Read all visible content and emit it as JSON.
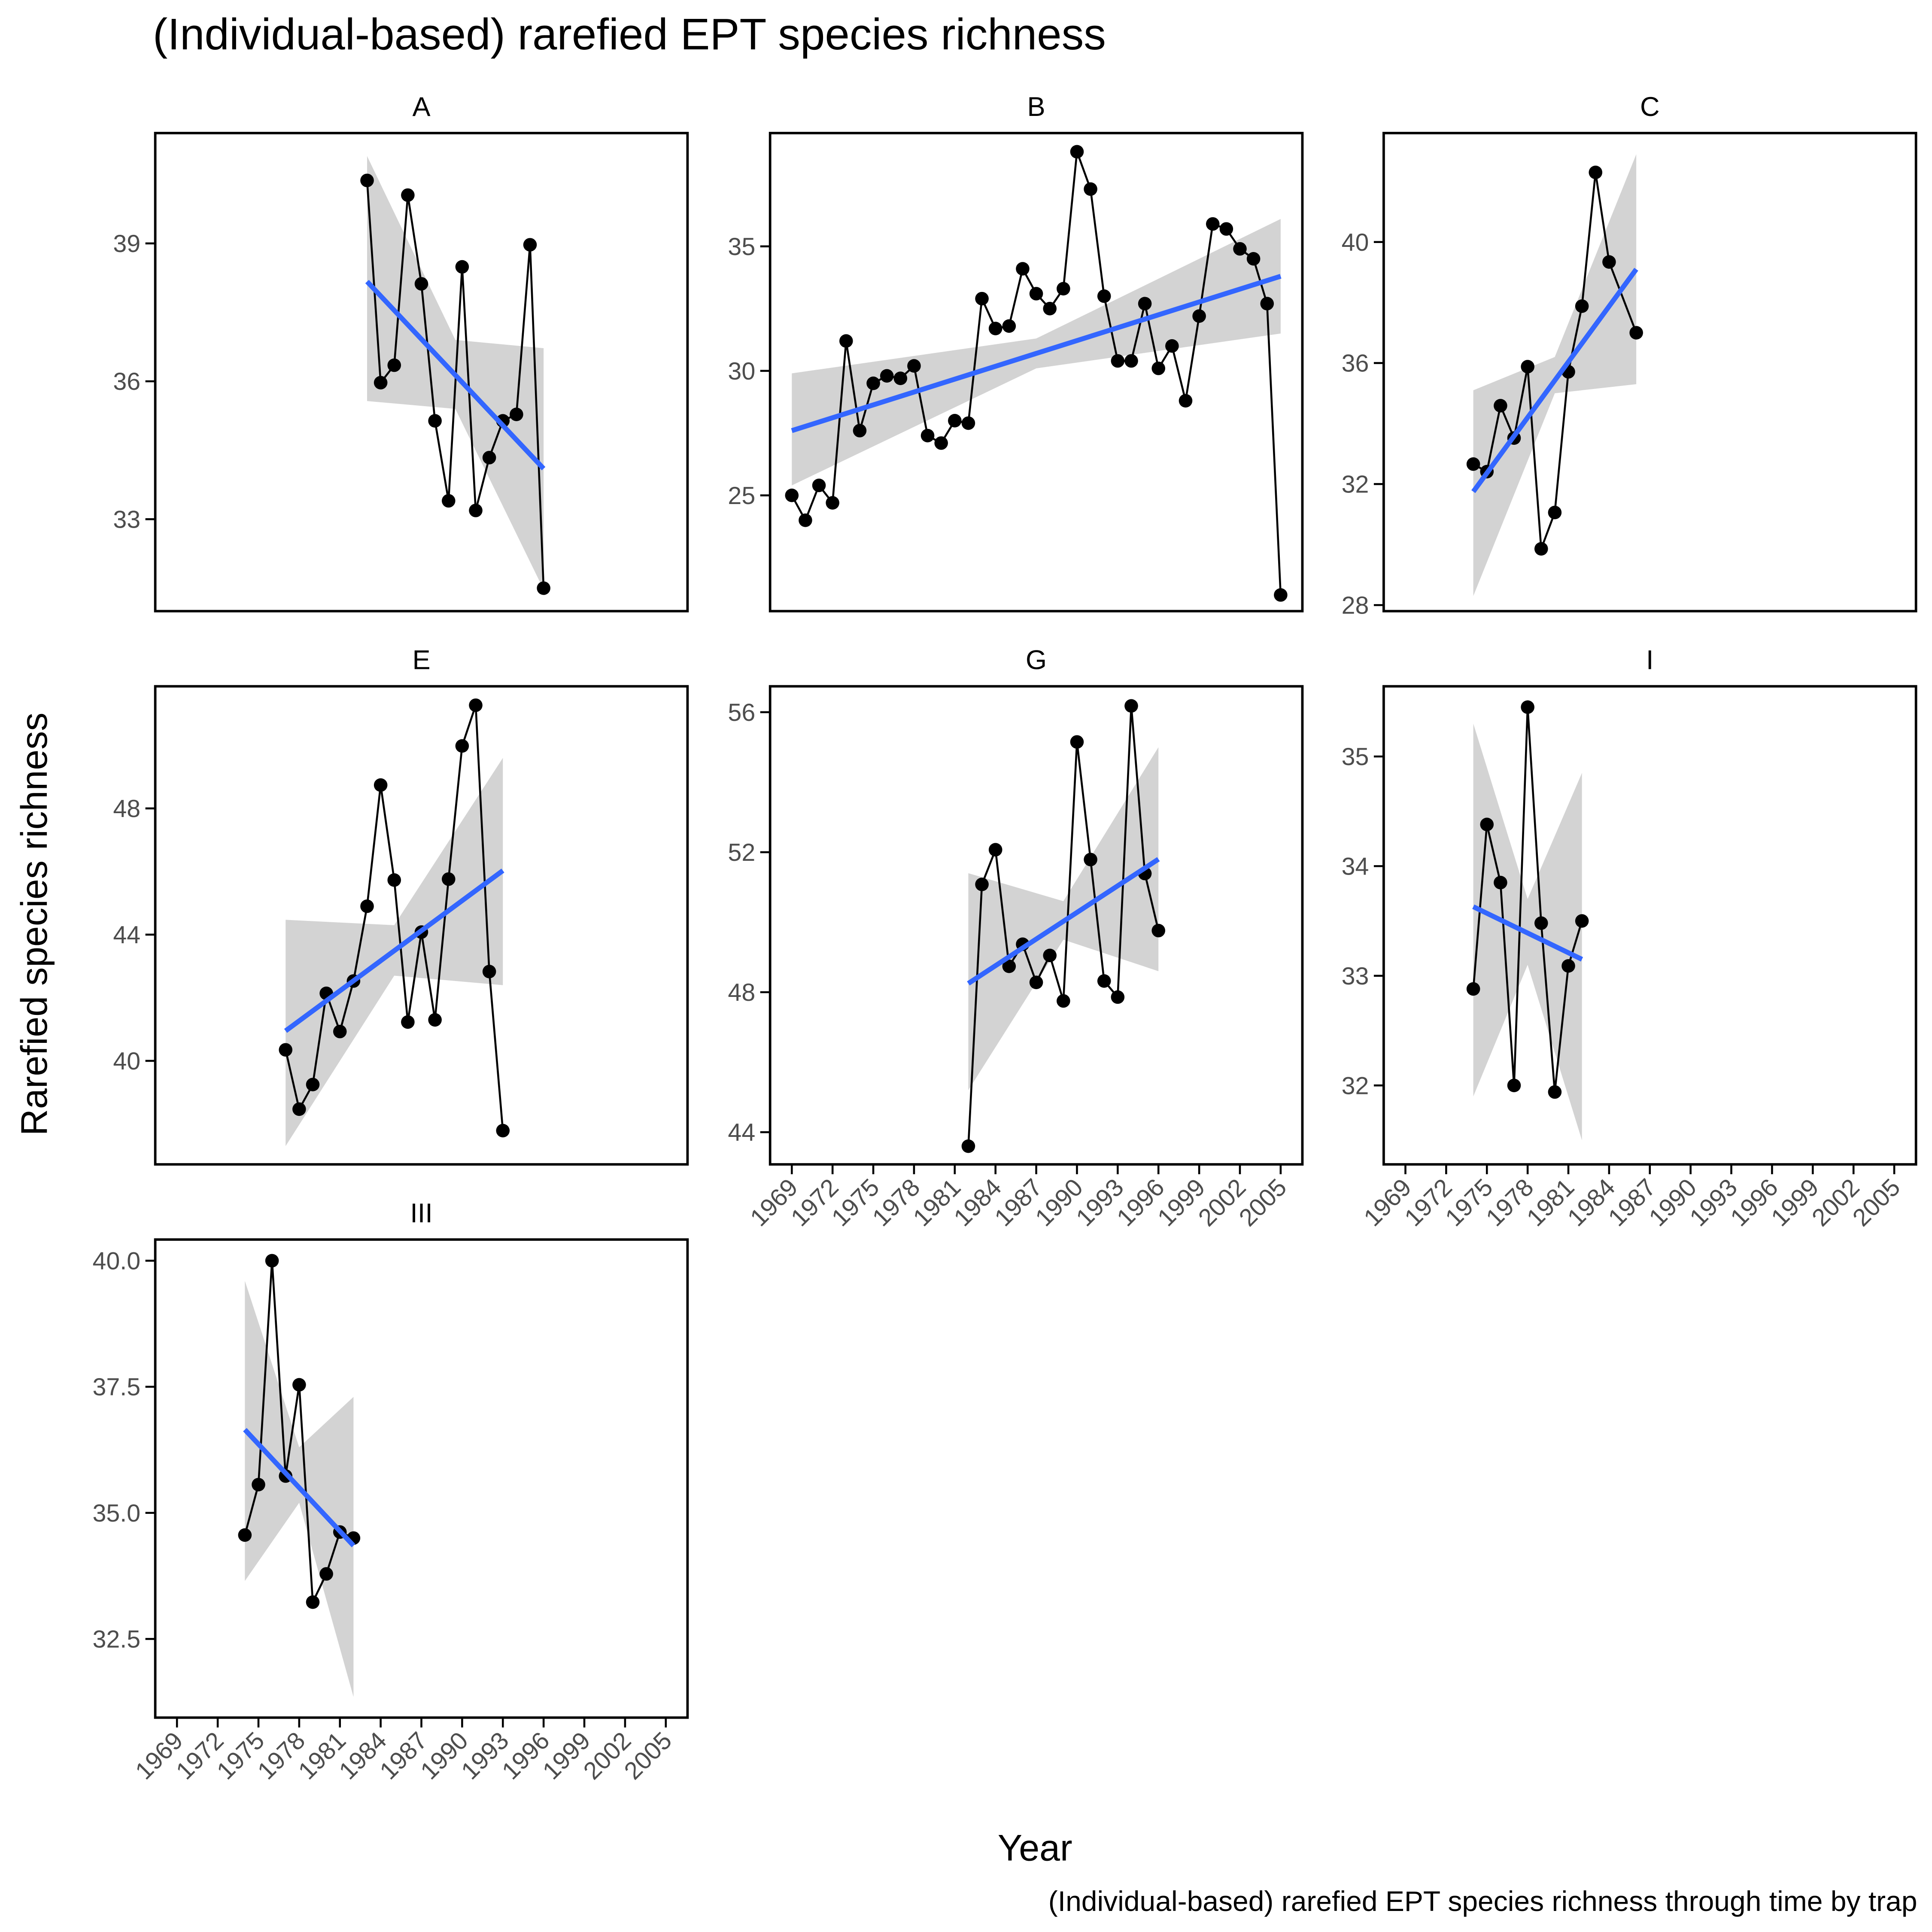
{
  "title": "(Individual-based) rarefied EPT species richness",
  "xlabel": "Year",
  "ylabel": "Rarefied species richness",
  "caption": "(Individual-based) rarefied EPT species richness through time by trap",
  "chart_data": [
    {
      "type": "line",
      "title": "A",
      "xlim": [
        1967.4,
        2006.6
      ],
      "ylim": [
        31.0,
        41.4
      ],
      "yticks": [
        33,
        36,
        39
      ],
      "x": [
        1983,
        1984,
        1985,
        1986,
        1987,
        1988,
        1989,
        1990,
        1991,
        1992,
        1993,
        1994,
        1995,
        1996
      ],
      "series": [
        {
          "color": "#000000",
          "values": [
            40.37,
            35.97,
            36.35,
            40.05,
            38.12,
            35.14,
            33.4,
            38.49,
            33.19,
            34.34,
            35.14,
            35.28,
            38.97,
            31.5
          ]
        },
        {
          "color": "#3366ff",
          "x": [
            1983,
            1996
          ],
          "values": [
            38.17,
            34.1
          ]
        }
      ],
      "band": {
        "color": "#d3d3d3",
        "x": [
          1983,
          1989.5,
          1996
        ],
        "lower": [
          35.57,
          35.4,
          31.47
        ],
        "upper": [
          40.9,
          36.9,
          36.72
        ]
      }
    },
    {
      "type": "line",
      "title": "B",
      "xlim": [
        1967.4,
        2006.6
      ],
      "ylim": [
        20.35,
        39.55
      ],
      "yticks": [
        25,
        30,
        35
      ],
      "x": [
        1969,
        1970,
        1971,
        1972,
        1973,
        1974,
        1975,
        1976,
        1977,
        1978,
        1979,
        1980,
        1981,
        1982,
        1983,
        1984,
        1985,
        1986,
        1987,
        1988,
        1989,
        1990,
        1991,
        1992,
        1993,
        1994,
        1995,
        1996,
        1997,
        1998,
        1999,
        2000,
        2001,
        2002,
        2003,
        2004,
        2005
      ],
      "series": [
        {
          "color": "#000000",
          "values": [
            25.0,
            24.0,
            25.4,
            24.7,
            31.2,
            27.6,
            29.5,
            29.8,
            29.7,
            30.2,
            27.4,
            27.1,
            28.0,
            27.9,
            32.9,
            31.7,
            31.8,
            34.1,
            33.1,
            32.5,
            33.3,
            38.8,
            37.3,
            33.0,
            30.4,
            30.4,
            32.7,
            30.1,
            31.0,
            28.8,
            32.2,
            35.9,
            35.7,
            34.9,
            34.5,
            32.7,
            21.0
          ]
        },
        {
          "color": "#3366ff",
          "x": [
            1969,
            2005
          ],
          "values": [
            27.6,
            33.8
          ]
        }
      ],
      "band": {
        "color": "#d3d3d3",
        "x": [
          1969,
          1987,
          2005
        ],
        "lower": [
          25.4,
          30.1,
          31.5
        ],
        "upper": [
          29.9,
          31.3,
          36.1
        ]
      }
    },
    {
      "type": "line",
      "title": "C",
      "xlim": [
        1967.4,
        2006.6
      ],
      "ylim": [
        27.8,
        43.6
      ],
      "yticks": [
        28,
        32,
        36,
        40
      ],
      "x": [
        1974,
        1975,
        1976,
        1977,
        1978,
        1979,
        1980,
        1981,
        1982,
        1983,
        1984,
        1986
      ],
      "series": [
        {
          "color": "#000000",
          "values": [
            32.66,
            32.41,
            34.59,
            33.52,
            35.88,
            29.86,
            31.06,
            35.71,
            37.88,
            42.3,
            39.34,
            37.0
          ]
        },
        {
          "color": "#3366ff",
          "x": [
            1974,
            1986
          ],
          "values": [
            31.75,
            39.1
          ]
        }
      ],
      "band": {
        "color": "#d3d3d3",
        "x": [
          1974,
          1980,
          1986
        ],
        "lower": [
          28.3,
          35.0,
          35.3
        ],
        "upper": [
          35.1,
          36.2,
          42.9
        ]
      }
    },
    {
      "type": "line",
      "title": "E",
      "xlim": [
        1967.4,
        2006.6
      ],
      "ylim": [
        36.72,
        51.87
      ],
      "yticks": [
        40,
        44,
        48
      ],
      "x": [
        1977,
        1978,
        1979,
        1980,
        1981,
        1982,
        1983,
        1984,
        1985,
        1986,
        1987,
        1988,
        1989,
        1990,
        1991,
        1992,
        1993
      ],
      "series": [
        {
          "color": "#000000",
          "values": [
            40.35,
            38.47,
            39.25,
            42.14,
            40.93,
            42.53,
            44.9,
            48.74,
            45.73,
            41.23,
            44.08,
            41.3,
            45.76,
            49.98,
            51.27,
            42.83,
            37.79
          ]
        },
        {
          "color": "#3366ff",
          "x": [
            1977,
            1993
          ],
          "values": [
            40.95,
            46.03
          ]
        }
      ],
      "band": {
        "color": "#d3d3d3",
        "x": [
          1977,
          1985,
          1993
        ],
        "lower": [
          37.3,
          42.7,
          42.4
        ],
        "upper": [
          44.47,
          44.3,
          49.6
        ]
      }
    },
    {
      "type": "line",
      "title": "G",
      "xlim": [
        1967.4,
        2006.6
      ],
      "ylim": [
        43.08,
        56.74
      ],
      "yticks": [
        44,
        48,
        52,
        56
      ],
      "xticks": [
        1969,
        1972,
        1975,
        1978,
        1981,
        1984,
        1987,
        1990,
        1993,
        1996,
        1999,
        2002,
        2005
      ],
      "x": [
        1982,
        1983,
        1984,
        1985,
        1986,
        1987,
        1988,
        1989,
        1990,
        1991,
        1992,
        1993,
        1994,
        1995,
        1996
      ],
      "series": [
        {
          "color": "#000000",
          "values": [
            43.6,
            51.08,
            52.07,
            48.74,
            49.37,
            48.28,
            49.05,
            47.75,
            55.15,
            51.79,
            48.32,
            47.86,
            56.18,
            51.39,
            49.76
          ]
        },
        {
          "color": "#3366ff",
          "x": [
            1982,
            1996
          ],
          "values": [
            48.25,
            51.8
          ]
        }
      ],
      "band": {
        "color": "#d3d3d3",
        "x": [
          1982,
          1989,
          1996
        ],
        "lower": [
          45.2,
          49.5,
          48.6
        ],
        "upper": [
          51.4,
          50.6,
          55.0
        ]
      }
    },
    {
      "type": "line",
      "title": "I",
      "xlim": [
        1967.4,
        2006.6
      ],
      "ylim": [
        31.28,
        35.64
      ],
      "yticks": [
        32,
        33,
        34,
        35
      ],
      "xticks": [
        1969,
        1972,
        1975,
        1978,
        1981,
        1984,
        1987,
        1990,
        1993,
        1996,
        1999,
        2002,
        2005
      ],
      "x": [
        1974,
        1975,
        1976,
        1977,
        1978,
        1979,
        1980,
        1981,
        1982
      ],
      "series": [
        {
          "color": "#000000",
          "values": [
            32.88,
            34.38,
            33.85,
            32.0,
            35.45,
            33.48,
            31.94,
            33.09,
            33.5
          ]
        },
        {
          "color": "#3366ff",
          "x": [
            1974,
            1982
          ],
          "values": [
            33.63,
            33.15
          ]
        }
      ],
      "band": {
        "color": "#d3d3d3",
        "x": [
          1974,
          1978,
          1982
        ],
        "lower": [
          31.9,
          33.1,
          31.5
        ],
        "upper": [
          35.3,
          33.7,
          34.85
        ]
      }
    },
    {
      "type": "line",
      "title": "III",
      "xlim": [
        1967.4,
        2006.6
      ],
      "ylim": [
        30.94,
        40.42
      ],
      "yticks": [
        32.5,
        {
          "value": 35,
          "label": "35.0"
        },
        37.5,
        {
          "value": 40,
          "label": "40.0"
        }
      ],
      "xticks": [
        1969,
        1972,
        1975,
        1978,
        1981,
        1984,
        1987,
        1990,
        1993,
        1996,
        1999,
        2002,
        2005
      ],
      "x": [
        1974,
        1975,
        1976,
        1977,
        1978,
        1979,
        1980,
        1981,
        1982
      ],
      "series": [
        {
          "color": "#000000",
          "values": [
            34.56,
            35.56,
            40.0,
            35.73,
            37.54,
            33.23,
            33.79,
            34.62,
            34.5
          ]
        },
        {
          "color": "#3366ff",
          "x": [
            1974,
            1982
          ],
          "values": [
            36.65,
            34.35
          ]
        }
      ],
      "band": {
        "color": "#d3d3d3",
        "x": [
          1974,
          1978,
          1982
        ],
        "lower": [
          33.65,
          35.2,
          31.35
        ],
        "upper": [
          39.6,
          36.3,
          37.3
        ]
      }
    }
  ]
}
